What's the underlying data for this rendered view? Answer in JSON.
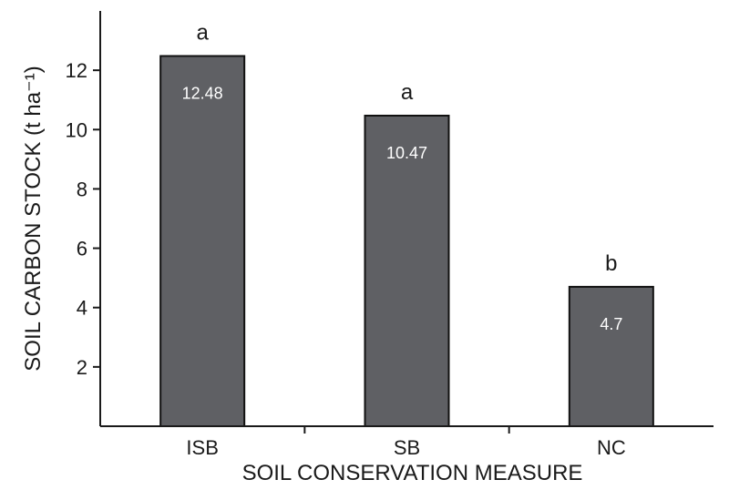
{
  "chart_data": {
    "type": "bar",
    "title": "",
    "xlabel": "SOIL CONSERVATION MEASURE",
    "ylabel": "SOIL CARBON STOCK (t ha⁻¹)",
    "categories": [
      "ISB",
      "SB",
      "NC"
    ],
    "values": [
      12.48,
      10.47,
      4.7
    ],
    "value_labels": [
      "12.48",
      "10.47",
      "4.7"
    ],
    "significance_letters": [
      "a",
      "a",
      "b"
    ],
    "y_ticks": [
      2,
      4,
      6,
      8,
      10,
      12
    ],
    "ylim": [
      0,
      14
    ],
    "grid": false,
    "legend": "none",
    "colors": {
      "bar": "#5f6064",
      "bar_edge": "#111111",
      "axis": "#1a1a1a",
      "value_text": "#ffffff"
    }
  }
}
